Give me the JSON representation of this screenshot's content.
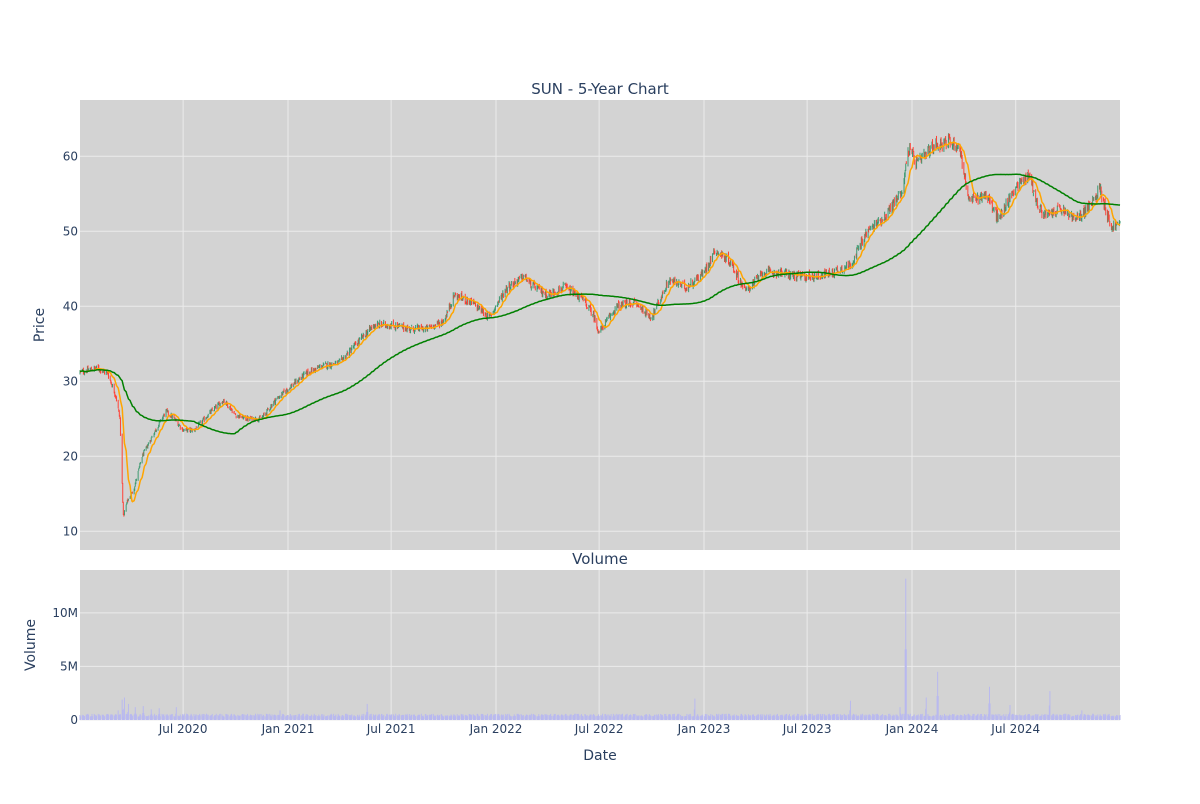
{
  "chart_data": {
    "title": "SUN - 5-Year Chart",
    "colors": {
      "background": "#d3d3d3",
      "gridline": "#ebebeb",
      "increasing": "#3d9970",
      "decreasing": "#ff4136",
      "ma_short": "#ffa500",
      "ma_long": "#008000",
      "volume": "#b9b9ef",
      "text": "#2a3f5f"
    },
    "x_tick_labels": [
      "Jul 2020",
      "Jan 2021",
      "Jul 2021",
      "Jan 2022",
      "Jul 2022",
      "Jan 2023",
      "Jul 2023",
      "Jan 2024",
      "Jul 2024"
    ],
    "x_tick_dates": [
      "2020-07-01",
      "2021-01-01",
      "2021-07-01",
      "2022-01-01",
      "2022-07-01",
      "2023-01-01",
      "2023-07-01",
      "2024-01-01",
      "2024-07-01"
    ],
    "xlim": [
      "2020-01-02",
      "2024-12-31"
    ],
    "xlabel": "Date",
    "price": {
      "type": "candlestick",
      "ylabel": "Price",
      "ylim": [
        7.5,
        67.5
      ],
      "y_ticks": [
        10,
        20,
        30,
        40,
        50,
        60
      ],
      "close_anchors": [
        [
          "2020-01-02",
          31.2
        ],
        [
          "2020-02-01",
          31.8
        ],
        [
          "2020-02-20",
          31.0
        ],
        [
          "2020-03-05",
          28.0
        ],
        [
          "2020-03-12",
          25.0
        ],
        [
          "2020-03-18",
          12.0
        ],
        [
          "2020-03-25",
          14.0
        ],
        [
          "2020-04-05",
          15.5
        ],
        [
          "2020-04-20",
          20.0
        ],
        [
          "2020-05-10",
          23.0
        ],
        [
          "2020-06-01",
          26.0
        ],
        [
          "2020-06-15",
          25.0
        ],
        [
          "2020-07-01",
          23.5
        ],
        [
          "2020-07-20",
          23.5
        ],
        [
          "2020-08-20",
          26.0
        ],
        [
          "2020-09-10",
          27.5
        ],
        [
          "2020-10-01",
          25.5
        ],
        [
          "2020-10-20",
          25.0
        ],
        [
          "2020-11-15",
          25.0
        ],
        [
          "2020-12-10",
          27.5
        ],
        [
          "2021-01-01",
          29.0
        ],
        [
          "2021-02-01",
          31.0
        ],
        [
          "2021-03-01",
          32.0
        ],
        [
          "2021-04-01",
          32.5
        ],
        [
          "2021-05-01",
          35.0
        ],
        [
          "2021-06-01",
          37.5
        ],
        [
          "2021-07-01",
          37.5
        ],
        [
          "2021-08-01",
          37.0
        ],
        [
          "2021-09-01",
          37.0
        ],
        [
          "2021-10-01",
          38.0
        ],
        [
          "2021-10-20",
          41.5
        ],
        [
          "2021-11-20",
          40.5
        ],
        [
          "2021-12-20",
          38.5
        ],
        [
          "2022-01-20",
          42.5
        ],
        [
          "2022-02-20",
          44.0
        ],
        [
          "2022-03-01",
          43.0
        ],
        [
          "2022-04-01",
          41.5
        ],
        [
          "2022-05-01",
          42.5
        ],
        [
          "2022-06-01",
          41.0
        ],
        [
          "2022-06-20",
          39.0
        ],
        [
          "2022-07-01",
          36.5
        ],
        [
          "2022-08-01",
          40.0
        ],
        [
          "2022-09-01",
          40.5
        ],
        [
          "2022-10-01",
          38.5
        ],
        [
          "2022-11-01",
          43.5
        ],
        [
          "2022-12-01",
          42.5
        ],
        [
          "2023-01-01",
          44.5
        ],
        [
          "2023-01-20",
          47.5
        ],
        [
          "2023-02-15",
          46.0
        ],
        [
          "2023-03-15",
          42.0
        ],
        [
          "2023-04-15",
          44.5
        ],
        [
          "2023-05-15",
          44.5
        ],
        [
          "2023-06-15",
          44.0
        ],
        [
          "2023-07-15",
          44.0
        ],
        [
          "2023-08-15",
          44.5
        ],
        [
          "2023-09-15",
          45.5
        ],
        [
          "2023-10-15",
          50.0
        ],
        [
          "2023-11-15",
          52.0
        ],
        [
          "2023-12-15",
          55.5
        ],
        [
          "2023-12-26",
          61.0
        ],
        [
          "2024-01-10",
          59.0
        ],
        [
          "2024-02-10",
          61.5
        ],
        [
          "2024-03-10",
          62.0
        ],
        [
          "2024-03-25",
          61.0
        ],
        [
          "2024-04-10",
          54.0
        ],
        [
          "2024-05-10",
          55.0
        ],
        [
          "2024-06-01",
          51.5
        ],
        [
          "2024-07-01",
          56.0
        ],
        [
          "2024-07-25",
          57.5
        ],
        [
          "2024-08-10",
          53.0
        ],
        [
          "2024-08-25",
          52.0
        ],
        [
          "2024-09-15",
          53.0
        ],
        [
          "2024-10-15",
          51.5
        ],
        [
          "2024-11-15",
          54.0
        ],
        [
          "2024-11-25",
          56.0
        ],
        [
          "2024-12-15",
          50.5
        ],
        [
          "2024-12-31",
          51.0
        ]
      ],
      "series": [
        {
          "name": "",
          "line": "ma_short",
          "period_days": 20
        },
        {
          "name": "",
          "line": "ma_long",
          "period_days": 200
        }
      ]
    },
    "volume": {
      "type": "bar",
      "subplot_title": "Volume",
      "ylabel": "Volume",
      "ylim": [
        0,
        14000000
      ],
      "y_ticks": [
        0,
        5000000,
        10000000
      ],
      "y_tick_labels": [
        "0",
        "5M",
        "10M"
      ],
      "baseline": 450000,
      "spikes": [
        [
          "2020-03-09",
          900000
        ],
        [
          "2020-03-16",
          1900000
        ],
        [
          "2020-03-20",
          2100000
        ],
        [
          "2020-03-27",
          1500000
        ],
        [
          "2020-04-08",
          1200000
        ],
        [
          "2020-04-22",
          1300000
        ],
        [
          "2020-05-06",
          1000000
        ],
        [
          "2020-05-20",
          1100000
        ],
        [
          "2020-06-19",
          1200000
        ],
        [
          "2020-12-18",
          900000
        ],
        [
          "2021-05-20",
          1500000
        ],
        [
          "2022-12-16",
          2000000
        ],
        [
          "2023-09-15",
          1800000
        ],
        [
          "2023-12-11",
          1200000
        ],
        [
          "2023-12-21",
          13200000
        ],
        [
          "2024-01-26",
          2100000
        ],
        [
          "2024-02-15",
          4500000
        ],
        [
          "2024-05-16",
          3100000
        ],
        [
          "2024-06-21",
          1400000
        ],
        [
          "2024-08-30",
          2700000
        ],
        [
          "2024-10-25",
          900000
        ]
      ]
    }
  }
}
